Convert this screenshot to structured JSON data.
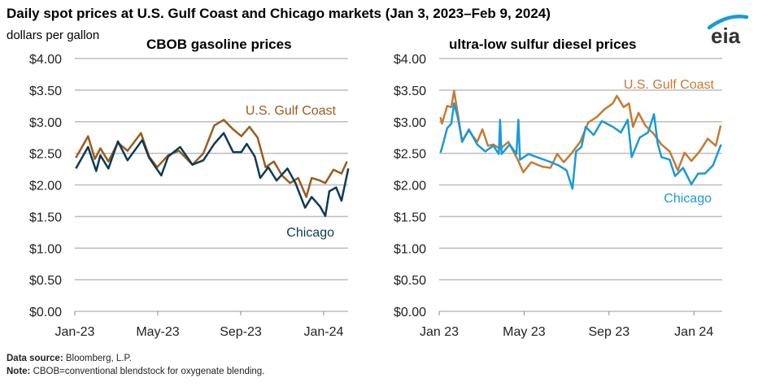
{
  "title": "Daily spot prices at U.S. Gulf Coast and Chicago markets (Jan 3, 2023–Feb 9, 2024)",
  "unit_label": "dollars per gallon",
  "logo": "eia",
  "footer": {
    "source_label": "Data source:",
    "source": " Bloomberg, L.P.",
    "note_label": "Note:",
    "note": " CBOB=conventional blendstock for oxygenate blending."
  },
  "colors": {
    "grid": "#bdbdbd",
    "logo_arc": "#1a9ad6"
  },
  "chart_data": [
    {
      "type": "line",
      "title": "CBOB gasoline prices",
      "ylabel": "dollars per gallon",
      "ylim": [
        0,
        4
      ],
      "yticks": [
        0,
        0.5,
        1,
        1.5,
        2,
        2.5,
        3,
        3.5,
        4
      ],
      "ytick_labels": [
        "$0.00",
        "$0.50",
        "$1.00",
        "$1.50",
        "$2.00",
        "$2.50",
        "$3.00",
        "$3.50",
        "$4.00"
      ],
      "x_unit": "months since Jan 1, 2023",
      "xlim": [
        0,
        13.2
      ],
      "xticks": [
        0,
        4,
        8,
        12
      ],
      "xtick_labels": [
        "Jan-23",
        "May-23",
        "Sep-23",
        "Jan-24"
      ],
      "grid": true,
      "series": [
        {
          "name": "U.S. Gulf Coast",
          "color": "#9c5b1c",
          "x": [
            0.05,
            0.64,
            0.97,
            1.23,
            1.62,
            2.08,
            2.54,
            3.19,
            3.58,
            3.97,
            4.5,
            5.02,
            5.67,
            6.2,
            6.72,
            7.18,
            7.63,
            8.03,
            8.42,
            8.81,
            9.2,
            9.6,
            9.99,
            10.38,
            10.77,
            11.16,
            11.42,
            11.82,
            12.08,
            12.47,
            12.86,
            13.12
          ],
          "y": [
            2.43,
            2.77,
            2.41,
            2.58,
            2.37,
            2.67,
            2.54,
            2.82,
            2.45,
            2.28,
            2.47,
            2.54,
            2.32,
            2.5,
            2.94,
            3.03,
            2.88,
            2.77,
            2.92,
            2.75,
            2.28,
            2.37,
            2.15,
            2.03,
            2.11,
            1.81,
            2.11,
            2.07,
            2.03,
            2.24,
            2.18,
            2.37
          ]
        },
        {
          "name": "Chicago",
          "color": "#0d3a56",
          "x": [
            0.05,
            0.64,
            1.03,
            1.23,
            1.62,
            2.08,
            2.54,
            3.25,
            3.58,
            4.17,
            4.5,
            5.08,
            5.67,
            6.2,
            6.72,
            7.18,
            7.63,
            8.03,
            8.29,
            8.68,
            8.94,
            9.33,
            9.73,
            10.25,
            10.64,
            11.1,
            11.42,
            11.82,
            12.08,
            12.27,
            12.6,
            12.86,
            13.19
          ],
          "y": [
            2.26,
            2.6,
            2.22,
            2.47,
            2.26,
            2.69,
            2.39,
            2.71,
            2.43,
            2.15,
            2.45,
            2.6,
            2.32,
            2.39,
            2.65,
            2.82,
            2.52,
            2.52,
            2.65,
            2.45,
            2.11,
            2.28,
            2.07,
            2.26,
            2.03,
            1.64,
            1.81,
            1.66,
            1.51,
            1.9,
            1.96,
            1.75,
            2.26
          ]
        }
      ]
    },
    {
      "type": "line",
      "title": "ultra-low sulfur diesel prices",
      "ylabel": "dollars per gallon",
      "ylim": [
        0,
        4
      ],
      "yticks": [
        0,
        0.5,
        1,
        1.5,
        2,
        2.5,
        3,
        3.5,
        4
      ],
      "ytick_labels": [
        "$0.00",
        "$0.50",
        "$1.00",
        "$1.50",
        "$2.00",
        "$2.50",
        "$3.00",
        "$3.50",
        "$4.00"
      ],
      "x_unit": "months since Jan 1, 2023",
      "xlim": [
        0,
        13.3
      ],
      "xticks": [
        0,
        4,
        8,
        12
      ],
      "xtick_labels": [
        "Jan 23",
        "May 23",
        "Sep 23",
        "Jan 24"
      ],
      "grid": true,
      "series": [
        {
          "name": "U.S. Gulf Coast",
          "color": "#c67a33",
          "x": [
            0.06,
            0.13,
            0.38,
            0.57,
            0.7,
            0.89,
            1.08,
            1.4,
            1.79,
            2.04,
            2.3,
            2.55,
            2.87,
            3.26,
            3.7,
            3.96,
            4.34,
            4.85,
            5.24,
            5.56,
            5.87,
            6.26,
            6.64,
            7.03,
            7.41,
            7.8,
            8.18,
            8.37,
            8.69,
            8.94,
            9.13,
            9.39,
            9.71,
            10.1,
            10.47,
            10.86,
            11.24,
            11.56,
            11.88,
            12.27,
            12.65,
            13.03,
            13.26
          ],
          "y": [
            3.07,
            2.97,
            3.25,
            3.23,
            3.49,
            3.1,
            2.7,
            2.86,
            2.68,
            2.88,
            2.62,
            2.64,
            2.57,
            2.68,
            2.4,
            2.2,
            2.36,
            2.29,
            2.27,
            2.49,
            2.36,
            2.51,
            2.68,
            2.99,
            3.07,
            3.2,
            3.29,
            3.41,
            3.23,
            3.29,
            2.92,
            3.14,
            2.94,
            2.81,
            2.64,
            2.53,
            2.23,
            2.51,
            2.38,
            2.53,
            2.73,
            2.62,
            2.94
          ]
        },
        {
          "name": "Chicago",
          "color": "#1a9ad6",
          "x": [
            0.06,
            0.19,
            0.38,
            0.57,
            0.7,
            0.89,
            1.08,
            1.4,
            1.79,
            2.17,
            2.55,
            2.81,
            2.87,
            2.94,
            3.32,
            3.64,
            3.73,
            3.81,
            4.21,
            4.6,
            5.11,
            5.62,
            6.0,
            6.28,
            6.45,
            6.7,
            6.9,
            7.28,
            7.66,
            8.18,
            8.56,
            8.88,
            9.07,
            9.45,
            9.84,
            10.12,
            10.29,
            10.47,
            10.86,
            11.11,
            11.49,
            11.88,
            12.2,
            12.52,
            12.9,
            13.28
          ],
          "y": [
            2.51,
            2.66,
            2.9,
            2.97,
            3.29,
            3.05,
            2.68,
            2.88,
            2.64,
            2.53,
            2.62,
            2.49,
            3.03,
            2.49,
            2.64,
            2.49,
            3.03,
            2.4,
            2.49,
            2.44,
            2.38,
            2.31,
            2.23,
            1.94,
            2.53,
            2.6,
            2.92,
            2.79,
            3.01,
            2.92,
            2.83,
            3.03,
            2.44,
            2.75,
            2.83,
            3.12,
            2.66,
            2.44,
            2.4,
            2.14,
            2.27,
            2.01,
            2.18,
            2.18,
            2.31,
            2.64
          ]
        }
      ]
    }
  ]
}
